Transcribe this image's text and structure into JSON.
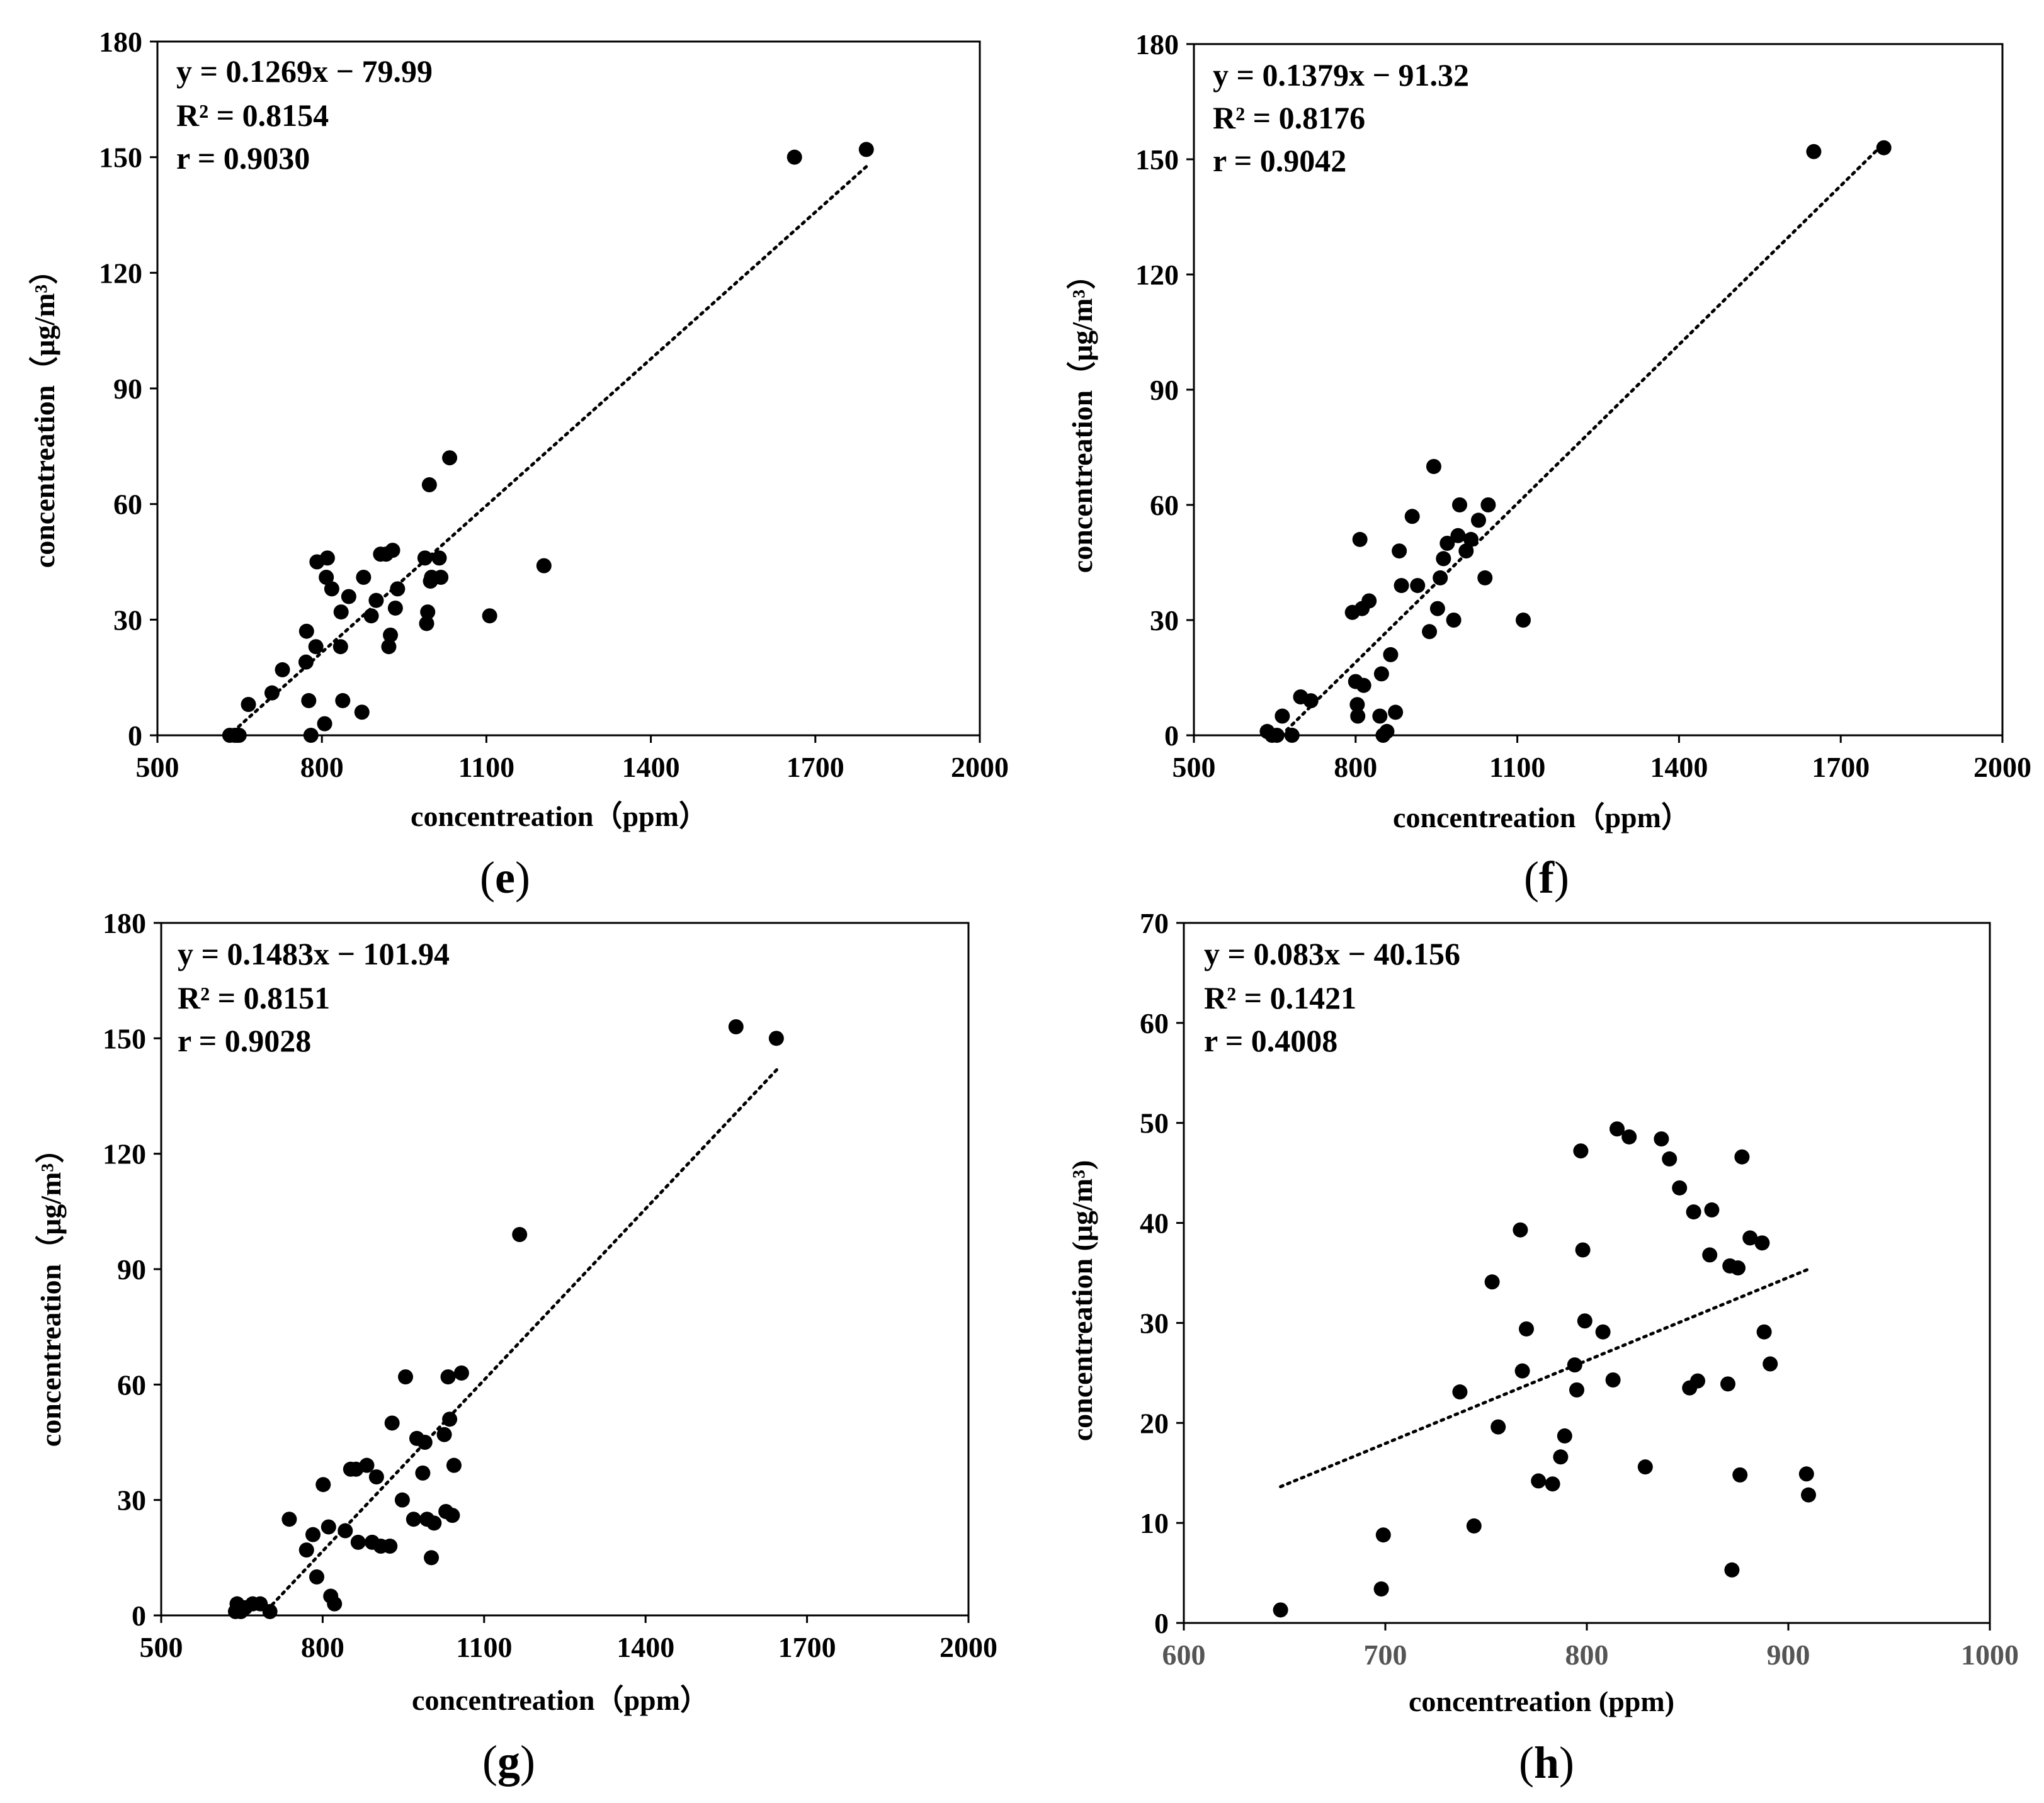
{
  "figure": {
    "panels": [
      "e",
      "f",
      "g",
      "h"
    ]
  },
  "chart_data": [
    {
      "id": "e",
      "type": "scatter",
      "panel_label": "e",
      "xlabel": "concentreation（ppm）",
      "ylabel": "concentreation（μg/m³）",
      "xlim": [
        500,
        2000
      ],
      "ylim": [
        0,
        180
      ],
      "xticks": [
        500,
        800,
        1100,
        1400,
        1700,
        2000
      ],
      "yticks": [
        0,
        30,
        60,
        90,
        120,
        150,
        180
      ],
      "trendline": {
        "slope": 0.1269,
        "intercept": -79.99,
        "x_from": 648,
        "x_to": 1793
      },
      "annotations": [
        "y = 0.1269x − 79.99",
        "R² = 0.8154",
        "r = 0.9030"
      ],
      "x": [
        632,
        641,
        645,
        649,
        666,
        709,
        728,
        771,
        772,
        776,
        780,
        789,
        791,
        805,
        808,
        810,
        818,
        834,
        835,
        838,
        849,
        873,
        876,
        890,
        899,
        907,
        917,
        922,
        925,
        929,
        934,
        938,
        988,
        991,
        993,
        996,
        998,
        1000,
        1014,
        1017,
        1033,
        1106,
        1205,
        1662,
        1793
      ],
      "y": [
        0,
        0,
        0,
        0,
        8,
        11,
        17,
        19,
        27,
        9,
        0,
        23,
        45,
        3,
        41,
        46,
        38,
        23,
        32,
        9,
        36,
        6,
        41,
        31,
        35,
        47,
        47,
        23,
        26,
        48,
        33,
        38,
        46,
        29,
        32,
        65,
        40,
        41,
        46,
        41,
        72,
        31,
        44,
        150,
        152
      ]
    },
    {
      "id": "f",
      "type": "scatter",
      "panel_label": "f",
      "xlabel": "concentreation（ppm）",
      "ylabel": "concentreation（μg/m³）",
      "xlim": [
        500,
        2000
      ],
      "ylim": [
        0,
        180
      ],
      "xticks": [
        500,
        800,
        1100,
        1400,
        1700,
        2000
      ],
      "yticks": [
        0,
        30,
        60,
        90,
        120,
        150,
        180
      ],
      "trendline": {
        "slope": 0.1379,
        "intercept": -91.32,
        "x_from": 662,
        "x_to": 1782
      },
      "annotations": [
        "y = 0.1379x − 91.32",
        "R² = 0.8176",
        "r = 0.9042"
      ],
      "x": [
        636,
        645,
        654,
        664,
        682,
        698,
        717,
        794,
        800,
        803,
        804,
        808,
        812,
        815,
        825,
        845,
        848,
        851,
        858,
        865,
        874,
        881,
        885,
        905,
        915,
        937,
        945,
        952,
        957,
        963,
        970,
        982,
        990,
        993,
        1005,
        1014,
        1028,
        1040,
        1046,
        1111,
        1650,
        1780
      ],
      "y": [
        1,
        0,
        0,
        5,
        0,
        10,
        9,
        32,
        14,
        8,
        5,
        51,
        33,
        13,
        35,
        5,
        16,
        0,
        1,
        21,
        6,
        48,
        39,
        57,
        39,
        27,
        70,
        33,
        41,
        46,
        50,
        30,
        52,
        60,
        48,
        51,
        56,
        41,
        60,
        30,
        152,
        153
      ]
    },
    {
      "id": "g",
      "type": "scatter",
      "panel_label": "g",
      "xlabel": "concentreation（ppm）",
      "ylabel": "concentreation（μg/m³）",
      "xlim": [
        500,
        2000
      ],
      "ylim": [
        0,
        180
      ],
      "xticks": [
        500,
        800,
        1100,
        1400,
        1700,
        2000
      ],
      "yticks": [
        0,
        30,
        60,
        90,
        120,
        150,
        180
      ],
      "trendline": {
        "slope": 0.1483,
        "intercept": -101.94,
        "x_from": 706,
        "x_to": 1645
      },
      "annotations": [
        "y = 0.1483x − 101.94",
        "R² = 0.8151",
        "r = 0.9028"
      ],
      "x": [
        638,
        641,
        648,
        656,
        670,
        684,
        702,
        738,
        770,
        782,
        789,
        801,
        811,
        815,
        822,
        842,
        852,
        862,
        866,
        882,
        892,
        900,
        908,
        925,
        929,
        948,
        954,
        969,
        975,
        986,
        990,
        994,
        1002,
        1007,
        1026,
        1029,
        1033,
        1036,
        1041,
        1044,
        1058,
        1166,
        1568,
        1643
      ],
      "y": [
        1,
        3,
        1,
        2,
        3,
        3,
        1,
        25,
        17,
        21,
        10,
        34,
        23,
        5,
        3,
        22,
        38,
        38,
        19,
        39,
        19,
        36,
        18,
        18,
        50,
        30,
        62,
        25,
        46,
        37,
        45,
        25,
        15,
        24,
        47,
        27,
        62,
        51,
        26,
        39,
        63,
        99,
        153,
        150
      ]
    },
    {
      "id": "h",
      "type": "scatter",
      "panel_label": "h",
      "xlabel": "concentreation (ppm)",
      "ylabel": "concentreation (μg/m³)",
      "xlim": [
        600,
        1000
      ],
      "ylim": [
        0,
        70
      ],
      "xticks": [
        600,
        700,
        800,
        900,
        1000
      ],
      "yticks": [
        0,
        10,
        20,
        30,
        40,
        50,
        60,
        70
      ],
      "trendline": {
        "slope": 0.083,
        "intercept": -40.156,
        "x_from": 648,
        "x_to": 910
      },
      "annotations": [
        "y = 0.083x − 40.156",
        "R² = 0.1421",
        "r = 0.4008"
      ],
      "x": [
        648,
        698,
        699,
        737,
        744,
        753,
        756,
        767,
        768,
        770,
        776,
        783,
        787,
        789,
        794,
        795,
        797,
        798,
        799,
        808,
        813,
        815,
        821,
        829,
        837,
        841,
        846,
        851,
        853,
        855,
        861,
        862,
        870,
        871,
        872,
        875,
        876,
        877,
        881,
        887,
        888,
        891,
        909,
        910
      ],
      "y": [
        1.3,
        3.4,
        8.8,
        23.1,
        9.7,
        34.1,
        19.6,
        39.3,
        25.2,
        29.4,
        14.2,
        13.9,
        16.6,
        18.7,
        25.8,
        23.3,
        47.2,
        37.3,
        30.2,
        29.1,
        24.3,
        49.4,
        48.6,
        15.6,
        48.4,
        46.4,
        43.5,
        23.5,
        41.1,
        24.2,
        36.8,
        41.3,
        23.9,
        35.7,
        5.3,
        35.5,
        14.8,
        46.6,
        38.5,
        38,
        29.1,
        25.9,
        14.9,
        12.8
      ]
    }
  ]
}
